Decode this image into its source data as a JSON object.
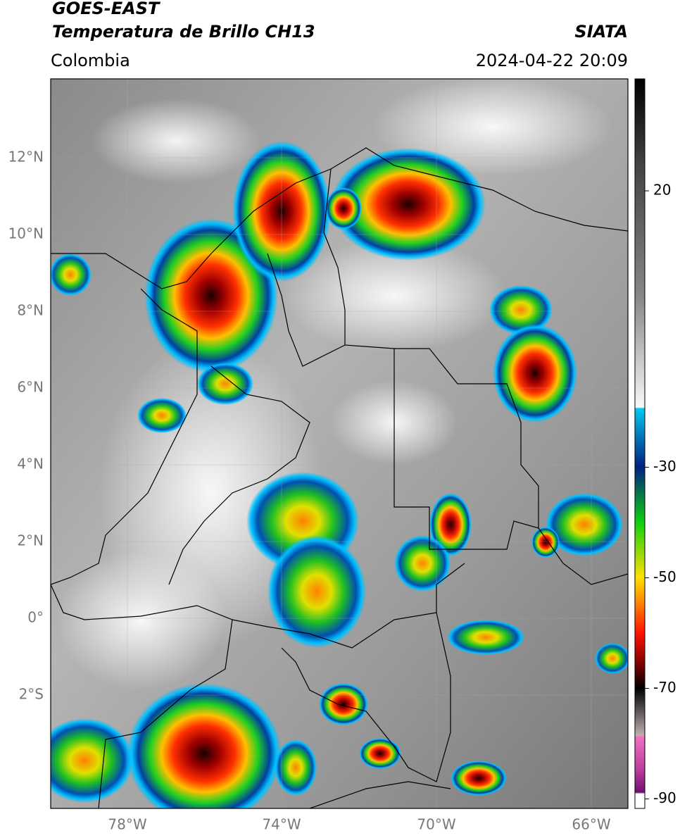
{
  "header": {
    "title": "GOES-EAST",
    "subtitle": "Temperatura de Brillo CH13",
    "region": "Colombia",
    "source": "SIATA",
    "timestamp": "2024-04-22 20:09"
  },
  "map": {
    "lat_labels": [
      "12°N",
      "10°N",
      "8°N",
      "6°N",
      "4°N",
      "2°N",
      "0°",
      "2°S"
    ],
    "lon_labels": [
      "78°W",
      "74°W",
      "70°W",
      "66°W"
    ]
  },
  "colorbar": {
    "ticks": [
      20,
      -30,
      -50,
      -70,
      -90
    ]
  }
}
